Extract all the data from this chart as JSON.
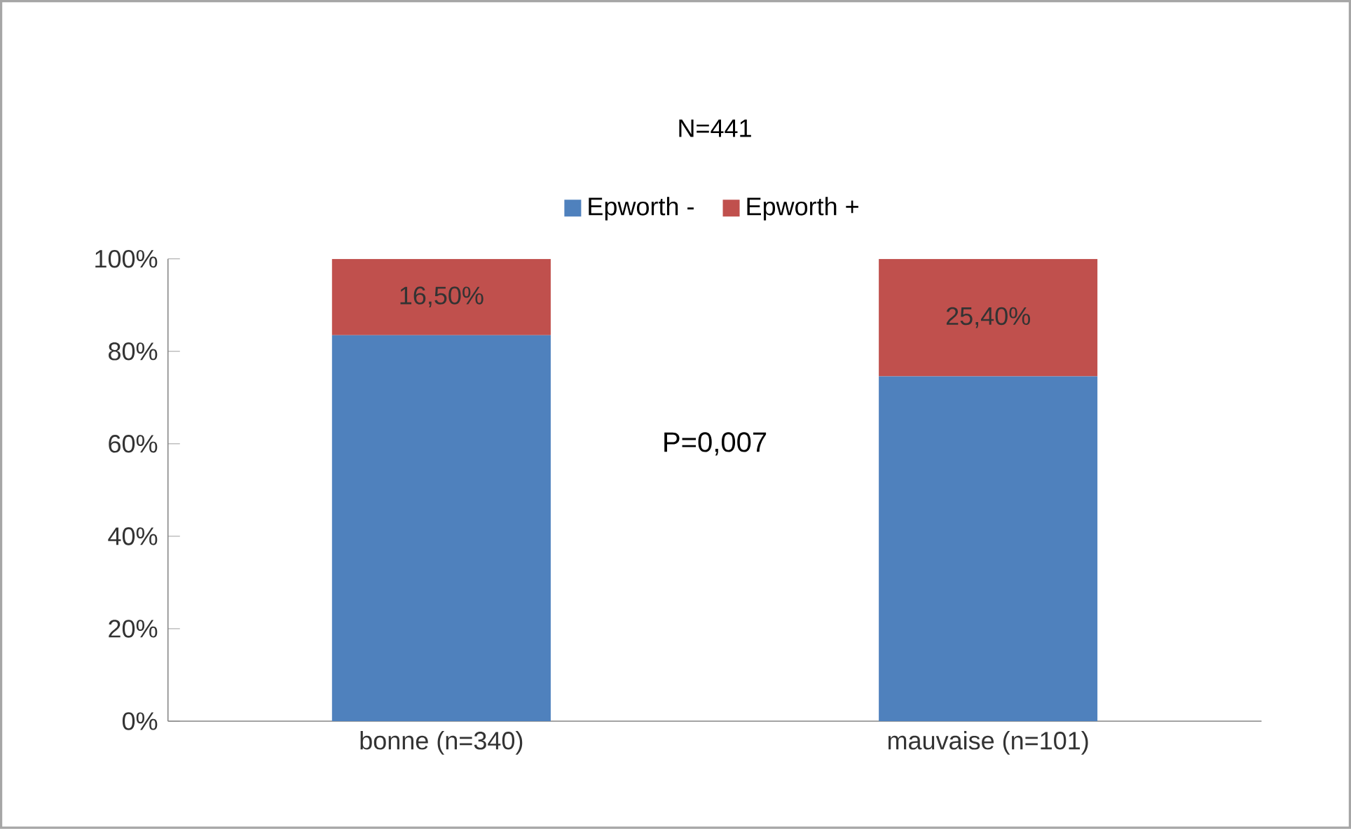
{
  "chart_data": {
    "type": "bar",
    "title": "N=441",
    "stacked": true,
    "categories": [
      "bonne (n=340)",
      "mauvaise (n=101)"
    ],
    "series": [
      {
        "name": "Epworth -",
        "color": "#4f81bd",
        "values": [
          83.5,
          74.6
        ]
      },
      {
        "name": "Epworth +",
        "color": "#c0504d",
        "values": [
          16.5,
          25.4
        ],
        "value_labels": [
          "16,50%",
          "25,40%"
        ]
      }
    ],
    "ylim": [
      0,
      100
    ],
    "yticks": [
      {
        "value": 0,
        "label": "0%"
      },
      {
        "value": 20,
        "label": "20%"
      },
      {
        "value": 40,
        "label": "40%"
      },
      {
        "value": 60,
        "label": "60%"
      },
      {
        "value": 80,
        "label": "80%"
      },
      {
        "value": 100,
        "label": "100%"
      }
    ],
    "annotations": [
      "P=0,007"
    ],
    "legend": "top",
    "grid": false
  }
}
